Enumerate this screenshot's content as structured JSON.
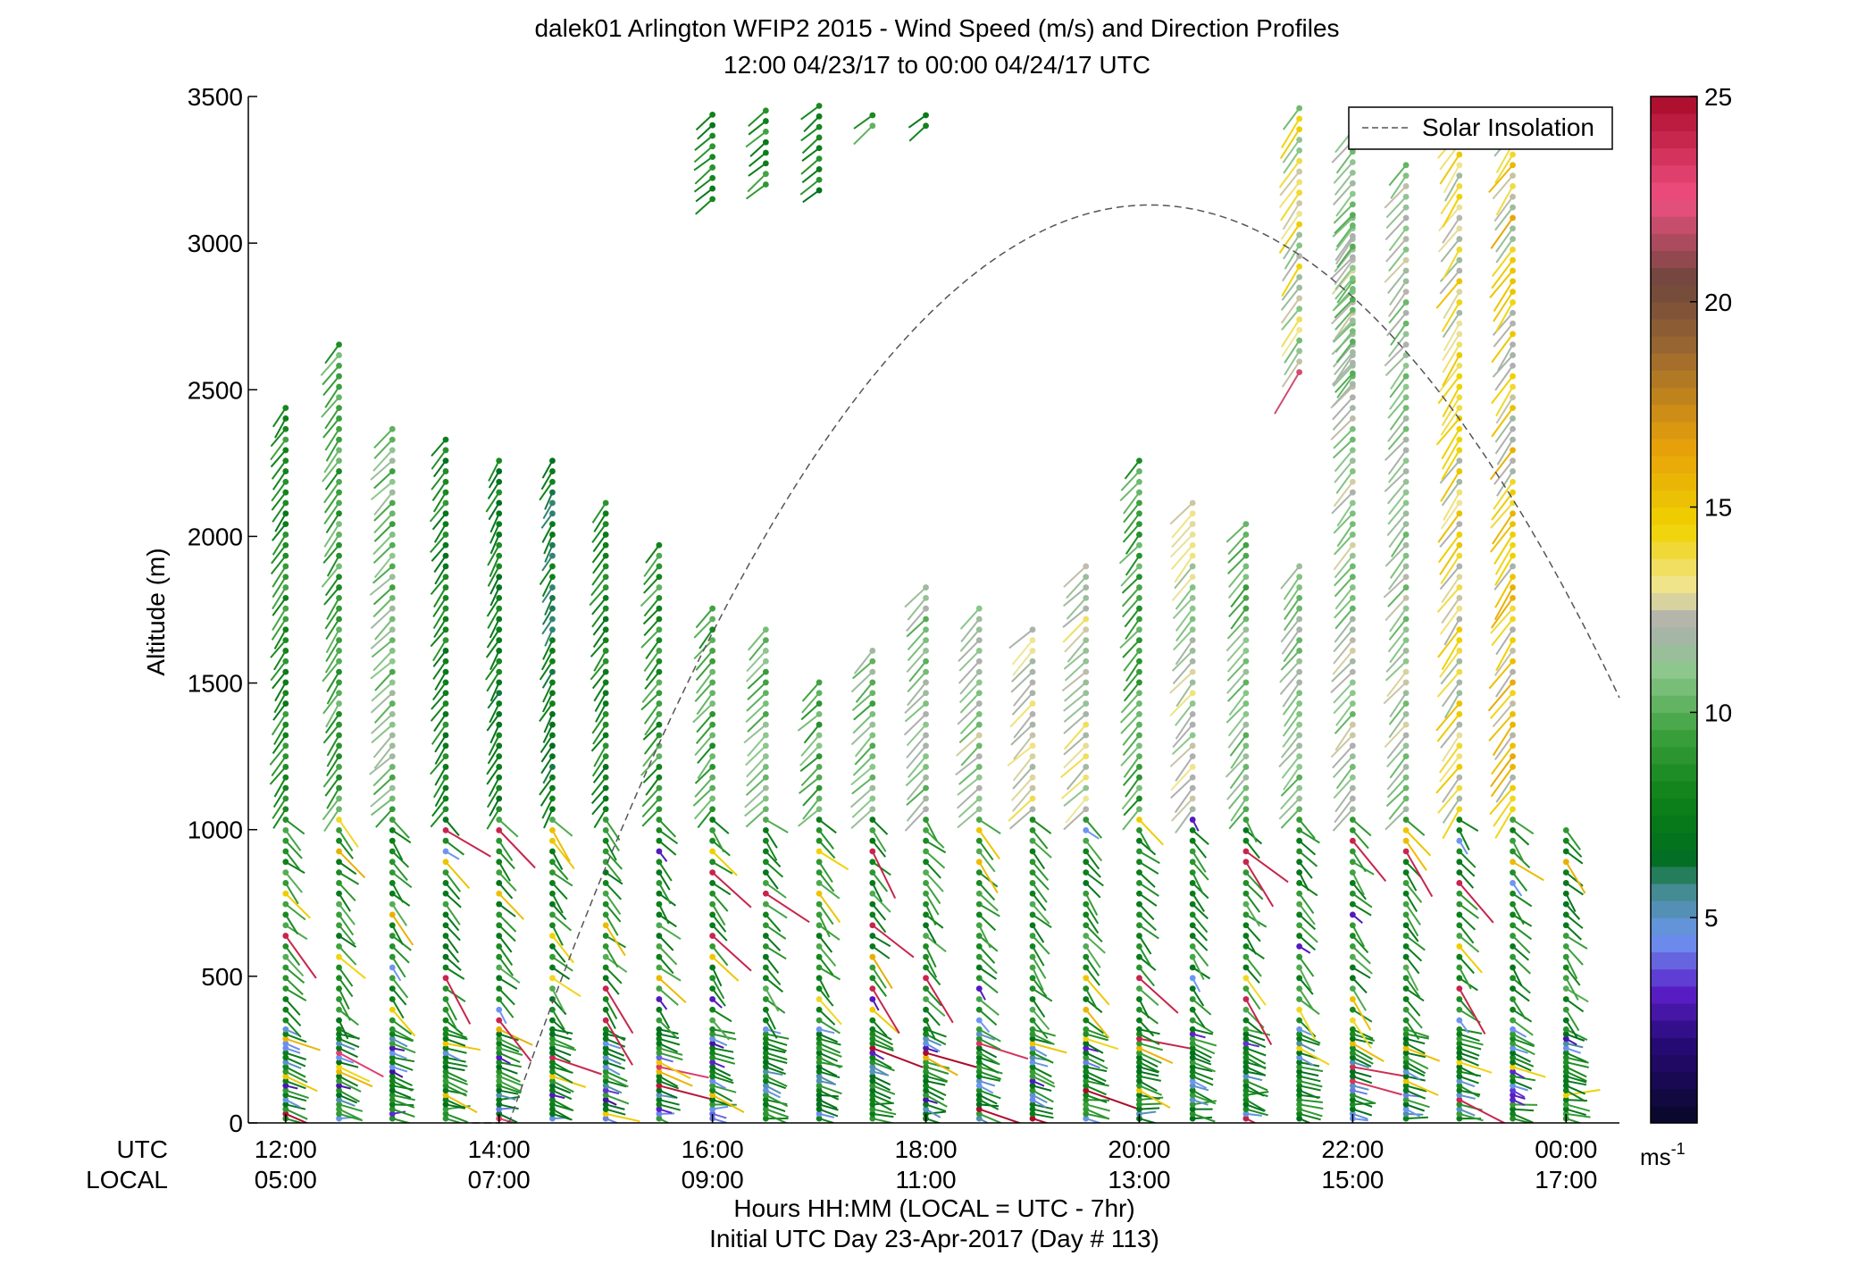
{
  "chart_data": {
    "type": "wind-barb-profile",
    "title": "dalek01 Arlington WFIP2 2015 - Wind Speed (m/s) and Direction Profiles",
    "subtitle": "12:00 04/23/17 to 00:00 04/24/17  UTC",
    "ylabel": "Altitude (m)",
    "xlabel": "Hours HH:MM  (LOCAL = UTC - 7hr)",
    "xlabel2": "Initial UTC Day 23-Apr-2017 (Day # 113)",
    "row_label_utc": "UTC",
    "row_label_local": "LOCAL",
    "ylim": [
      0,
      3500
    ],
    "xlim_hours": [
      11.65,
      24.5
    ],
    "yticks": [
      0,
      500,
      1000,
      1500,
      2000,
      2500,
      3000,
      3500
    ],
    "xticks_hours": [
      12,
      14,
      16,
      18,
      20,
      22,
      24
    ],
    "xticks_utc": [
      "12:00",
      "14:00",
      "16:00",
      "18:00",
      "20:00",
      "22:00",
      "00:00"
    ],
    "xticks_local": [
      "05:00",
      "07:00",
      "09:00",
      "11:00",
      "13:00",
      "15:00",
      "17:00"
    ],
    "legend": {
      "entries": [
        {
          "label": "Solar Insolation",
          "style": "dashed",
          "color": "#555555"
        }
      ],
      "location": "top-right"
    },
    "colorbar": {
      "min": 0,
      "max": 25,
      "ticks": [
        5,
        10,
        15,
        20,
        25
      ],
      "unit": "ms-1",
      "unit_base": "ms",
      "unit_exp": "-1"
    },
    "solar_insolation_curve": {
      "start_hour": 13.75,
      "peak_hour": 20.1,
      "peak_altitude_m": 3130,
      "end_hour": 24.5,
      "end_altitude_m": 1450
    },
    "profiles": [
      {
        "time": 12.0,
        "max_alt": 2450,
        "upper_speed": 8.5,
        "upper_dir": 35
      },
      {
        "time": 12.5,
        "max_alt": 2680,
        "upper_speed": 9.5,
        "upper_dir": 35
      },
      {
        "time": 13.0,
        "max_alt": 2400,
        "upper_speed": 10.5,
        "upper_dir": 45
      },
      {
        "time": 13.5,
        "max_alt": 2330,
        "upper_speed": 8.0,
        "upper_dir": 35
      },
      {
        "time": 14.0,
        "max_alt": 2260,
        "upper_speed": 7.5,
        "upper_dir": 30
      },
      {
        "time": 14.5,
        "max_alt": 2260,
        "upper_speed": 7.0,
        "upper_dir": 30
      },
      {
        "time": 15.0,
        "max_alt": 2120,
        "upper_speed": 8.0,
        "upper_dir": 35
      },
      {
        "time": 15.5,
        "max_alt": 1980,
        "upper_speed": 9.0,
        "upper_dir": 40
      },
      {
        "time": 16.0,
        "max_alt": 1760,
        "upper_speed": 9.5,
        "upper_dir": 40
      },
      {
        "time": 16.5,
        "max_alt": 1690,
        "upper_speed": 10.5,
        "upper_dir": 45
      },
      {
        "time": 17.0,
        "max_alt": 1520,
        "upper_speed": 10.0,
        "upper_dir": 45
      },
      {
        "time": 17.5,
        "max_alt": 1620,
        "upper_speed": 10.5,
        "upper_dir": 45
      },
      {
        "time": 18.0,
        "max_alt": 1840,
        "upper_speed": 11.0,
        "upper_dir": 45
      },
      {
        "time": 18.5,
        "max_alt": 1770,
        "upper_speed": 11.5,
        "upper_dir": 45
      },
      {
        "time": 19.0,
        "max_alt": 1690,
        "upper_speed": 13.0,
        "upper_dir": 45
      },
      {
        "time": 19.5,
        "max_alt": 1900,
        "upper_speed": 12.5,
        "upper_dir": 45
      },
      {
        "time": 20.0,
        "max_alt": 2260,
        "upper_speed": 9.5,
        "upper_dir": 40
      },
      {
        "time": 20.5,
        "max_alt": 2120,
        "upper_speed": 12.0,
        "upper_dir": 40
      },
      {
        "time": 21.0,
        "max_alt": 2050,
        "upper_speed": 10.5,
        "upper_dir": 40
      },
      {
        "time": 21.5,
        "max_alt": 1900,
        "upper_speed": 11.0,
        "upper_dir": 40
      },
      {
        "time": 22.0,
        "max_alt": 3110,
        "upper_speed": 11.5,
        "upper_dir": 40
      },
      {
        "time": 22.5,
        "max_alt": 3280,
        "upper_speed": 11.5,
        "upper_dir": 40
      },
      {
        "time": 23.0,
        "max_alt": 3470,
        "upper_speed": 14.0,
        "upper_dir": 35
      },
      {
        "time": 23.5,
        "max_alt": 3470,
        "upper_speed": 15.0,
        "upper_dir": 35
      },
      {
        "time": 24.0,
        "max_alt": 1000,
        "upper_speed": 9.5,
        "upper_dir": 40
      }
    ],
    "upper_segments": [
      {
        "time": 16.0,
        "min_alt": 3150,
        "max_alt": 3470,
        "speed": 8.0,
        "dir": 50
      },
      {
        "time": 16.5,
        "min_alt": 3200,
        "max_alt": 3470,
        "speed": 8.5,
        "dir": 50
      },
      {
        "time": 17.0,
        "min_alt": 3180,
        "max_alt": 3470,
        "speed": 8.0,
        "dir": 50
      },
      {
        "time": 17.5,
        "min_alt": 3400,
        "max_alt": 3470,
        "speed": 9.0,
        "dir": 50
      },
      {
        "time": 18.0,
        "min_alt": 3400,
        "max_alt": 3470,
        "speed": 7.0,
        "dir": 50
      },
      {
        "time": 21.5,
        "min_alt": 2560,
        "max_alt": 3470,
        "speed": 13.5,
        "dir": 35
      },
      {
        "time": 22.0,
        "min_alt": 2520,
        "max_alt": 3390,
        "speed": 11.0,
        "dir": 40
      }
    ]
  }
}
